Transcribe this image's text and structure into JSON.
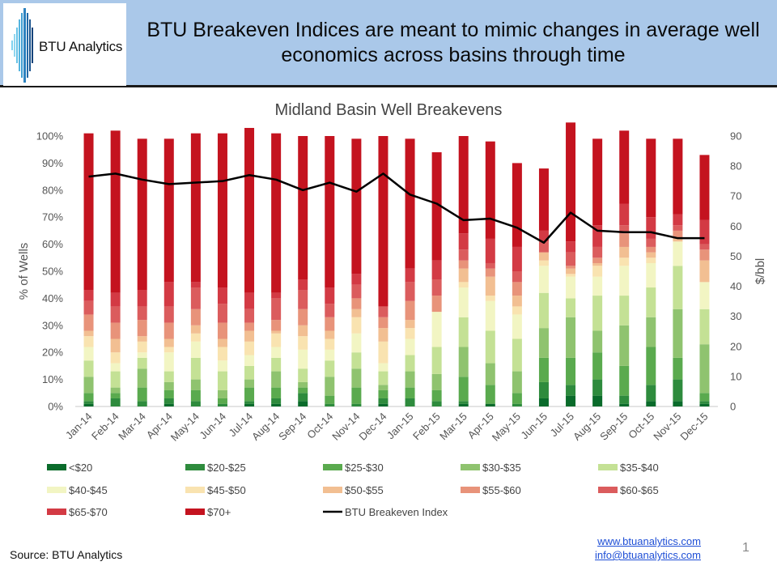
{
  "header": {
    "logo_text": "BTU Analytics",
    "headline_line1": "BTU Breakeven Indices are meant to mimic changes in average well",
    "headline_line2": "economics across basins through time"
  },
  "footer": {
    "source": "Source: BTU Analytics",
    "website": "www.btuanalytics.com",
    "email": "info@btuanalytics.com",
    "page_number": "1"
  },
  "colors": {
    "header_bg": "#aac8e9",
    "index_line": "#000000",
    "price_buckets": [
      "#0a6b2b",
      "#2e8b3d",
      "#5aaa4e",
      "#8fc36f",
      "#c4e195",
      "#f2f5c3",
      "#f9e3b0",
      "#f2bf92",
      "#e8937a",
      "#db5c5d",
      "#d33a44",
      "#c4131f"
    ]
  },
  "chart_data": {
    "type": "bar",
    "stacked": true,
    "title": "Midland Basin Well Breakevens",
    "ylabel": "% of Wells",
    "y2label": "$/bbl",
    "ylim": [
      0,
      100
    ],
    "y2lim": [
      0,
      90
    ],
    "yticks": [
      "0%",
      "10%",
      "20%",
      "30%",
      "40%",
      "50%",
      "60%",
      "70%",
      "80%",
      "90%",
      "100%"
    ],
    "y2ticks": [
      "0",
      "10",
      "20",
      "30",
      "40",
      "50",
      "60",
      "70",
      "80",
      "90"
    ],
    "categories": [
      "Jan-14",
      "Feb-14",
      "Mar-14",
      "Apr-14",
      "May-14",
      "Jun-14",
      "Jul-14",
      "Aug-14",
      "Sep-14",
      "Oct-14",
      "Nov-14",
      "Dec-14",
      "Jan-15",
      "Feb-15",
      "Mar-15",
      "Apr-15",
      "May-15",
      "Jun-15",
      "Jul-15",
      "Aug-15",
      "Sep-15",
      "Oct-15",
      "Nov-15",
      "Dec-15"
    ],
    "legend_position": "bottom",
    "series": [
      {
        "name": "<$20",
        "values": [
          1,
          0,
          0,
          1,
          0,
          0,
          1,
          1,
          2,
          0,
          0,
          1,
          0,
          0,
          1,
          1,
          0,
          3,
          4,
          4,
          1,
          2,
          2,
          1
        ]
      },
      {
        "name": "$20-$25",
        "values": [
          1,
          3,
          2,
          2,
          2,
          1,
          1,
          2,
          3,
          1,
          1,
          2,
          3,
          2,
          1,
          0,
          1,
          6,
          4,
          6,
          3,
          6,
          8,
          1
        ]
      },
      {
        "name": "$25-$30",
        "values": [
          3,
          2,
          5,
          3,
          4,
          2,
          5,
          4,
          2,
          3,
          6,
          3,
          4,
          4,
          9,
          7,
          4,
          9,
          10,
          10,
          11,
          14,
          8,
          3
        ]
      },
      {
        "name": "$30-$35",
        "values": [
          6,
          2,
          7,
          3,
          4,
          3,
          3,
          6,
          2,
          7,
          7,
          2,
          6,
          6,
          11,
          8,
          8,
          11,
          15,
          8,
          15,
          11,
          18,
          18
        ]
      },
      {
        "name": "$35-$40",
        "values": [
          6,
          6,
          4,
          4,
          8,
          7,
          5,
          5,
          5,
          6,
          6,
          5,
          6,
          10,
          11,
          12,
          12,
          13,
          7,
          13,
          11,
          11,
          16,
          13
        ]
      },
      {
        "name": "$40-$45",
        "values": [
          5,
          3,
          2,
          7,
          6,
          4,
          4,
          4,
          7,
          4,
          7,
          3,
          6,
          13,
          11,
          11,
          9,
          10,
          8,
          7,
          11,
          9,
          9,
          10
        ]
      },
      {
        "name": "$45-$50",
        "values": [
          4,
          4,
          4,
          2,
          3,
          5,
          5,
          5,
          5,
          4,
          6,
          8,
          4,
          0,
          2,
          2,
          3,
          2,
          1,
          4,
          3,
          2,
          0,
          0
        ]
      },
      {
        "name": "$50-$55",
        "values": [
          2,
          5,
          2,
          3,
          3,
          3,
          4,
          1,
          4,
          3,
          3,
          5,
          3,
          0,
          5,
          7,
          4,
          3,
          2,
          1,
          4,
          2,
          1,
          8
        ]
      },
      {
        "name": "$55-$60",
        "values": [
          6,
          6,
          6,
          6,
          6,
          6,
          3,
          4,
          6,
          5,
          4,
          4,
          7,
          6,
          3,
          3,
          5,
          0,
          1,
          2,
          5,
          2,
          3,
          4
        ]
      },
      {
        "name": "$60-$65",
        "values": [
          5,
          6,
          5,
          6,
          8,
          7,
          5,
          8,
          7,
          5,
          5,
          4,
          7,
          6,
          4,
          2,
          4,
          4,
          5,
          4,
          3,
          3,
          2,
          2
        ]
      },
      {
        "name": "$65-$70",
        "values": [
          4,
          5,
          6,
          9,
          2,
          6,
          6,
          2,
          4,
          6,
          4,
          0,
          5,
          7,
          6,
          9,
          9,
          4,
          4,
          8,
          8,
          8,
          4,
          9
        ]
      },
      {
        "name": "$70+",
        "values": [
          58,
          60,
          56,
          53,
          55,
          57,
          61,
          59,
          53,
          56,
          50,
          63,
          48,
          40,
          36,
          36,
          31,
          23,
          44,
          32,
          27,
          29,
          28,
          24
        ]
      }
    ],
    "line": {
      "name": "BTU Breakeven Index",
      "axis": "secondary",
      "values": [
        76.5,
        77.5,
        75.5,
        74,
        74.5,
        75,
        77,
        75.5,
        72,
        74.5,
        71.5,
        77.5,
        70.5,
        67.5,
        62,
        62.5,
        59.5,
        54.5,
        64.5,
        58.5,
        58,
        58,
        56,
        56
      ]
    }
  }
}
